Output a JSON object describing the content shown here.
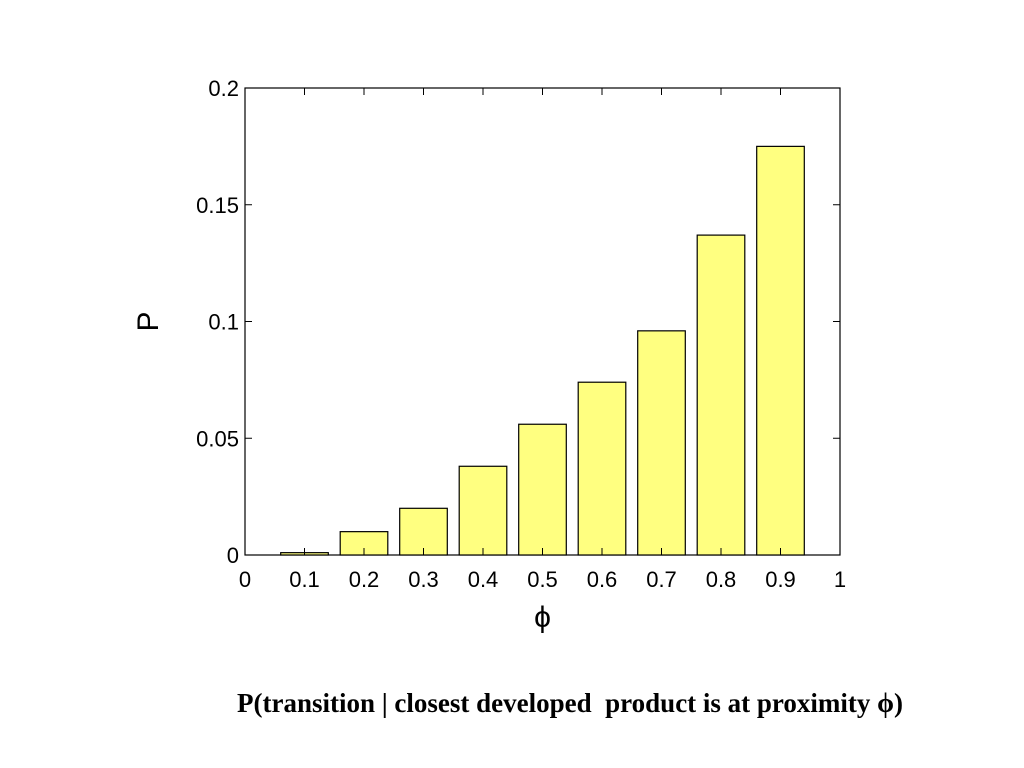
{
  "chart_data": {
    "type": "bar",
    "categories": [
      "0.1",
      "0.2",
      "0.3",
      "0.4",
      "0.5",
      "0.6",
      "0.7",
      "0.8",
      "0.9"
    ],
    "x": [
      0.1,
      0.2,
      0.3,
      0.4,
      0.5,
      0.6,
      0.7,
      0.8,
      0.9
    ],
    "values": [
      0.001,
      0.01,
      0.02,
      0.038,
      0.056,
      0.074,
      0.096,
      0.137,
      0.175
    ],
    "xlabel": "ϕ",
    "ylabel": "P",
    "xlim": [
      0,
      1
    ],
    "ylim": [
      0,
      0.2
    ],
    "xticks": [
      "0",
      "0.1",
      "0.2",
      "0.3",
      "0.4",
      "0.5",
      "0.6",
      "0.7",
      "0.8",
      "0.9",
      "1"
    ],
    "yticks": [
      "0",
      "0.05",
      "0.1",
      "0.15",
      "0.2"
    ],
    "grid": false,
    "bar_color": "#ffff80",
    "caption": "P(transition | closest developed  product is at proximity ϕ)"
  }
}
